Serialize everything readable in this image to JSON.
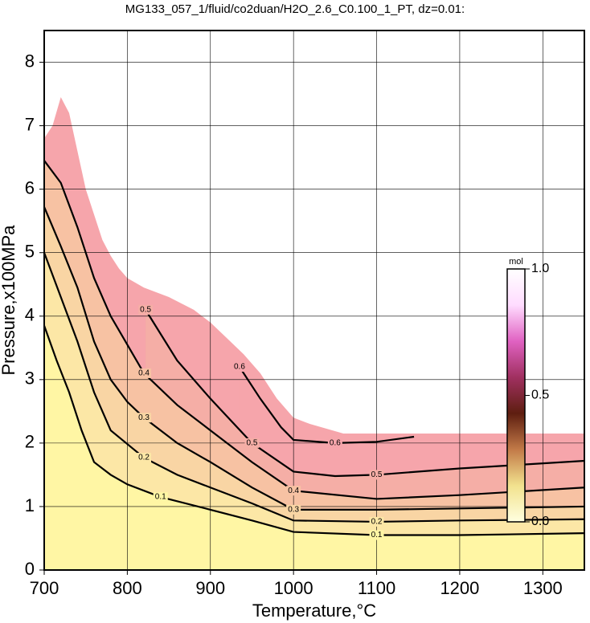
{
  "chart_data": {
    "type": "contour",
    "title": "MG133_057_1/fluid/co2duan/H2O_2.6_C0.100_1_PT, dz=0.01:",
    "x_label": "Temperature,°C",
    "y_label": "Pressure,x100MPa",
    "xlim": [
      700,
      1350
    ],
    "ylim": [
      0,
      8.5
    ],
    "xticks": [
      700,
      800,
      900,
      1000,
      1100,
      1200,
      1300
    ],
    "yticks": [
      0,
      1,
      2,
      3,
      4,
      5,
      6,
      7,
      8
    ],
    "grid": true,
    "boundary": {
      "color": "#f6a5ab",
      "x": [
        700,
        710,
        720,
        730,
        740,
        750,
        760,
        770,
        780,
        790,
        800,
        820,
        850,
        880,
        900,
        920,
        940,
        960,
        980,
        1000,
        1020,
        1060,
        1070,
        1350
      ],
      "y": [
        6.8,
        7.0,
        7.45,
        7.2,
        6.6,
        6.0,
        5.6,
        5.2,
        4.95,
        4.75,
        4.6,
        4.45,
        4.3,
        4.1,
        3.9,
        3.65,
        3.4,
        3.1,
        2.7,
        2.4,
        2.3,
        2.15,
        2.15,
        2.15
      ]
    },
    "contours": [
      {
        "level": 0.6,
        "fill": "#f6a5ab",
        "x": [
          935,
          960,
          985,
          1000,
          1050,
          1100,
          1145
        ],
        "y": [
          3.2,
          2.7,
          2.25,
          2.05,
          2.0,
          2.02,
          2.1
        ]
      },
      {
        "level": 0.5,
        "fill": "#f5aea6",
        "x": [
          822,
          860,
          900,
          950,
          1000,
          1050,
          1100,
          1200,
          1350
        ],
        "y": [
          4.1,
          3.3,
          2.7,
          2.0,
          1.55,
          1.48,
          1.5,
          1.6,
          1.72
        ]
      },
      {
        "level": 0.4,
        "fill": "#f7c2a3",
        "x": [
          700,
          720,
          740,
          760,
          780,
          800,
          820,
          860,
          900,
          950,
          1000,
          1100,
          1200,
          1350
        ],
        "y": [
          6.45,
          6.1,
          5.4,
          4.6,
          4.0,
          3.55,
          3.1,
          2.6,
          2.2,
          1.7,
          1.25,
          1.12,
          1.18,
          1.3
        ]
      },
      {
        "level": 0.3,
        "fill": "#f9d5a4",
        "x": [
          700,
          720,
          740,
          760,
          780,
          800,
          820,
          860,
          900,
          950,
          1000,
          1100,
          1200,
          1350
        ],
        "y": [
          5.72,
          5.1,
          4.45,
          3.6,
          3.0,
          2.65,
          2.4,
          2.0,
          1.7,
          1.3,
          0.95,
          0.95,
          0.97,
          1.0
        ]
      },
      {
        "level": 0.2,
        "fill": "#fce7a6",
        "x": [
          700,
          720,
          740,
          760,
          780,
          820,
          860,
          900,
          950,
          1000,
          1100,
          1200,
          1350
        ],
        "y": [
          5.0,
          4.3,
          3.6,
          2.8,
          2.2,
          1.77,
          1.5,
          1.3,
          1.05,
          0.78,
          0.76,
          0.78,
          0.8
        ]
      },
      {
        "level": 0.1,
        "fill": "#fff6a4",
        "x": [
          700,
          715,
          730,
          745,
          760,
          780,
          800,
          840,
          900,
          950,
          1000,
          1100,
          1200,
          1350
        ],
        "y": [
          3.85,
          3.3,
          2.8,
          2.2,
          1.7,
          1.5,
          1.35,
          1.15,
          0.95,
          0.78,
          0.6,
          0.55,
          0.55,
          0.58
        ]
      }
    ],
    "colorbar": {
      "label": "mol",
      "lim": [
        0,
        1
      ],
      "ticks": [
        {
          "value": 0,
          "label": "0.0"
        },
        0.5,
        {
          "value": 1,
          "label": "1.0"
        }
      ],
      "colors": [
        "#ffffe0",
        "#f2e28e",
        "#c27a48",
        "#5e1e10",
        "#a03060",
        "#e062c2",
        "#ffdcff",
        "#ffffff"
      ]
    }
  }
}
